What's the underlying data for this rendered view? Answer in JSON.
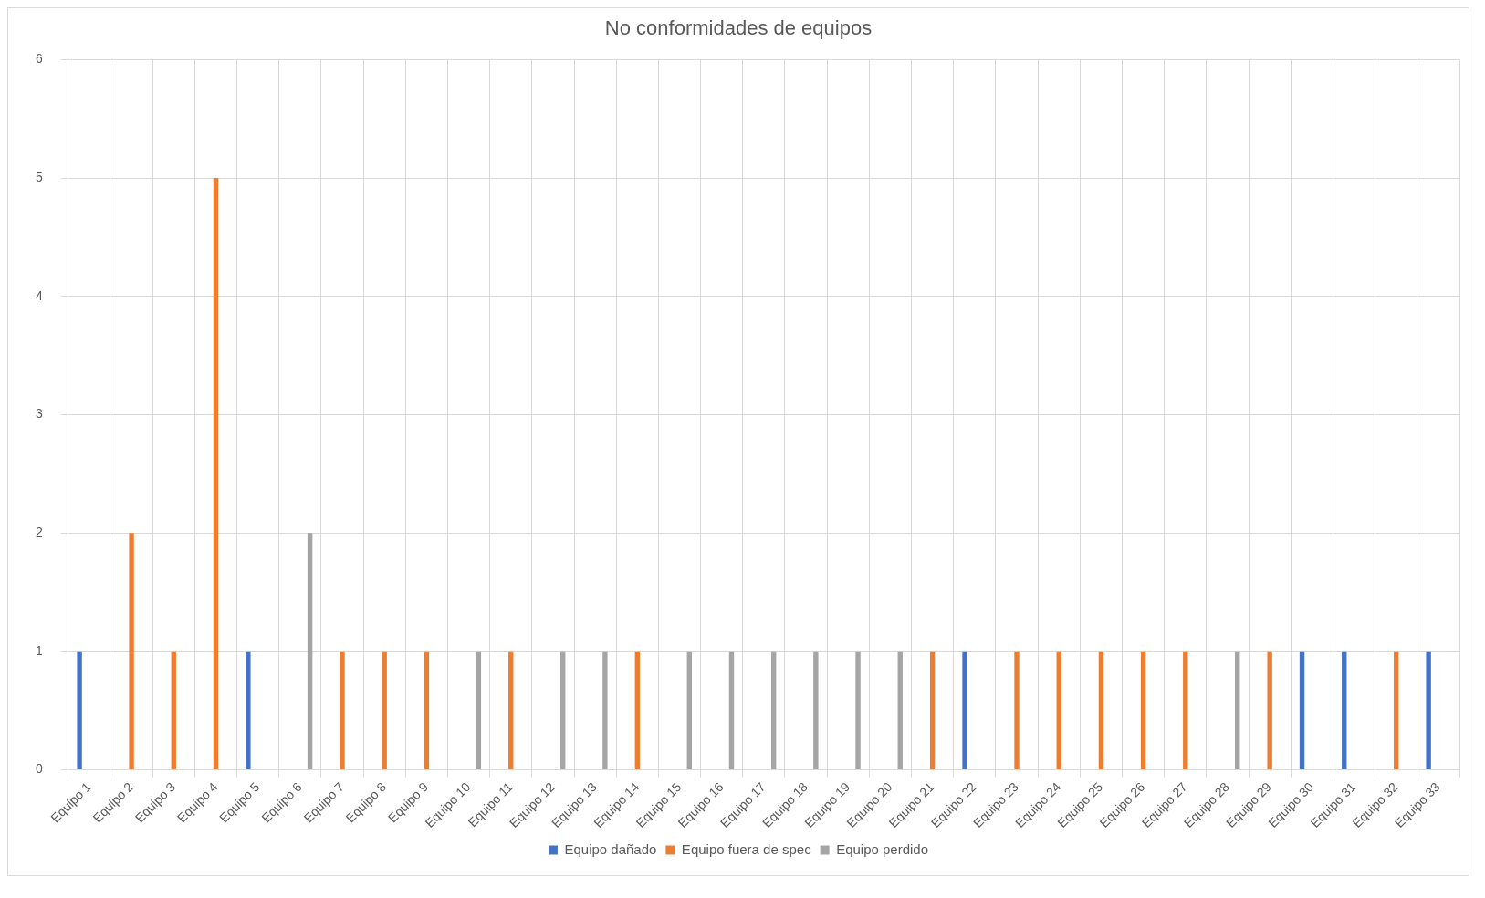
{
  "chart_data": {
    "type": "bar",
    "title": "No conformidades de equipos",
    "categories": [
      "Equipo 1",
      "Equipo 2",
      "Equipo 3",
      "Equipo 4",
      "Equipo 5",
      "Equipo 6",
      "Equipo 7",
      "Equipo 8",
      "Equipo 9",
      "Equipo 10",
      "Equipo 11",
      "Equipo 12",
      "Equipo 13",
      "Equipo 14",
      "Equipo 15",
      "Equipo 16",
      "Equipo 17",
      "Equipo 18",
      "Equipo 19",
      "Equipo 20",
      "Equipo 21",
      "Equipo 22",
      "Equipo 23",
      "Equipo 24",
      "Equipo 25",
      "Equipo 26",
      "Equipo 27",
      "Equipo 28",
      "Equipo 29",
      "Equipo 30",
      "Equipo 31",
      "Equipo 32",
      "Equipo 33"
    ],
    "series": [
      {
        "name": "Equipo dañado",
        "color": "#4472c4",
        "values": [
          1,
          0,
          0,
          0,
          1,
          0,
          0,
          0,
          0,
          0,
          0,
          0,
          0,
          0,
          0,
          0,
          0,
          0,
          0,
          0,
          0,
          1,
          0,
          0,
          0,
          0,
          0,
          0,
          0,
          1,
          1,
          0,
          1
        ]
      },
      {
        "name": "Equipo fuera de spec",
        "color": "#ed7d31",
        "values": [
          0,
          2,
          1,
          5,
          0,
          0,
          1,
          1,
          1,
          0,
          1,
          0,
          0,
          1,
          0,
          0,
          0,
          0,
          0,
          0,
          1,
          0,
          1,
          1,
          1,
          1,
          1,
          0,
          1,
          0,
          0,
          1,
          0
        ]
      },
      {
        "name": "Equipo perdido",
        "color": "#a5a5a5",
        "values": [
          0,
          0,
          0,
          0,
          0,
          2,
          0,
          0,
          0,
          1,
          0,
          1,
          1,
          0,
          1,
          1,
          1,
          1,
          1,
          1,
          0,
          0,
          0,
          0,
          0,
          0,
          0,
          1,
          0,
          0,
          0,
          0,
          0
        ]
      }
    ],
    "ylim": [
      0,
      6
    ],
    "yticks": [
      0,
      1,
      2,
      3,
      4,
      5,
      6
    ],
    "grid": true,
    "legend": "bottom"
  }
}
